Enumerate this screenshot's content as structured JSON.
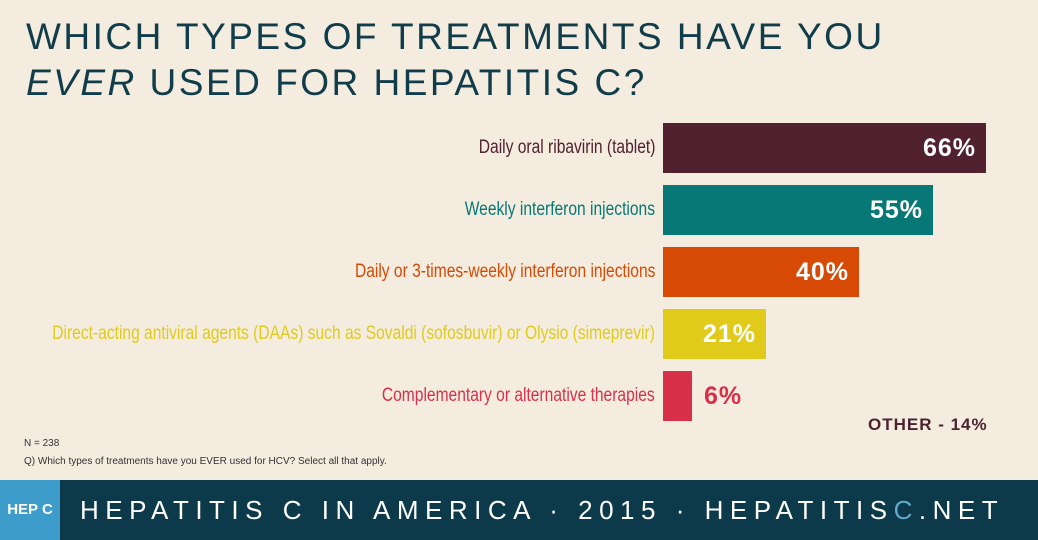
{
  "title": {
    "line1": "Which types of treatments have you",
    "line2_em": "EVER",
    "line2_rest": " used for Hepatitis C?"
  },
  "chart_data": {
    "type": "bar",
    "orientation": "horizontal",
    "categories": [
      "Daily oral ribavirin (tablet)",
      "Weekly interferon injections",
      "Daily or 3-times-weekly interferon injections",
      "Direct-acting antiviral agents (DAAs) such as Sovaldi (sofosbuvir) or Olysio (simeprevir)",
      "Complementary or alternative therapies"
    ],
    "values": [
      66,
      55,
      40,
      21,
      6
    ],
    "value_labels": [
      "66%",
      "55%",
      "40%",
      "21%",
      "6%"
    ],
    "colors": [
      "#51212f",
      "#077876",
      "#d64a05",
      "#e0cb1a",
      "#d9304a"
    ],
    "unit": "%",
    "other_label": "OTHER - 14%",
    "grid": false
  },
  "notes": {
    "n": "N = 238",
    "question": "Q) Which types of treatments have you EVER used for HCV? Select all that apply."
  },
  "footer": {
    "logo": "HEP C",
    "text_main": "HEPATITIS C IN AMERICA · 2015 · HEPATITIS",
    "text_c": "C",
    "text_end": ".NET",
    "bg": "#0c3a4b",
    "logo_bg": "#3d9cc9"
  }
}
